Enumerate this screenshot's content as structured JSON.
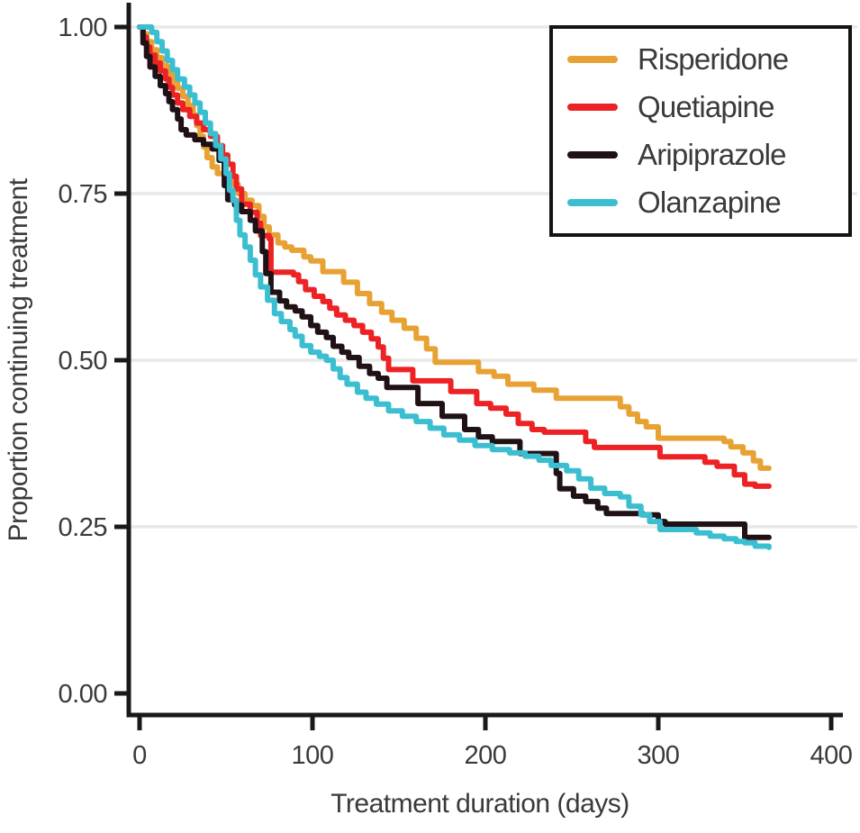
{
  "figure": {
    "background": "#ffffff",
    "axis_color": "#191919",
    "grid_color": "#e8e8e8",
    "text_color": "#3a3a3a"
  },
  "chart_data": {
    "type": "line",
    "subtype": "kaplan-meier-step",
    "title": "",
    "xlabel": "Treatment duration (days)",
    "ylabel": "Proportion continuing treatment",
    "xlim": [
      0,
      400
    ],
    "ylim": [
      0.0,
      1.0
    ],
    "xticks": [
      "0",
      "100",
      "200",
      "300",
      "400"
    ],
    "xtick_values": [
      0,
      100,
      200,
      300,
      400
    ],
    "yticks": [
      "0.00",
      "0.25",
      "0.50",
      "0.75",
      "1.00"
    ],
    "ytick_values": [
      0.0,
      0.25,
      0.5,
      0.75,
      1.0
    ],
    "grid": "horizontal",
    "gridline_values": [
      0.25,
      0.5,
      0.75,
      1.0
    ],
    "legend_position": "top-right",
    "series": [
      {
        "name": "Risperidone",
        "color": "#e8a133",
        "points": [
          [
            0,
            1.0
          ],
          [
            2,
            0.99
          ],
          [
            4,
            0.978
          ],
          [
            7,
            0.966
          ],
          [
            10,
            0.954
          ],
          [
            13,
            0.942
          ],
          [
            16,
            0.93
          ],
          [
            19,
            0.918
          ],
          [
            22,
            0.908
          ],
          [
            25,
            0.896
          ],
          [
            28,
            0.882
          ],
          [
            31,
            0.868
          ],
          [
            33,
            0.852
          ],
          [
            35,
            0.836
          ],
          [
            37,
            0.82
          ],
          [
            39,
            0.804
          ],
          [
            42,
            0.79
          ],
          [
            45,
            0.78
          ],
          [
            49,
            0.772
          ],
          [
            53,
            0.764
          ],
          [
            57,
            0.75
          ],
          [
            61,
            0.74
          ],
          [
            65,
            0.732
          ],
          [
            69,
            0.716
          ],
          [
            72,
            0.7
          ],
          [
            75,
            0.688
          ],
          [
            80,
            0.676
          ],
          [
            84,
            0.67
          ],
          [
            88,
            0.665
          ],
          [
            95,
            0.655
          ],
          [
            99,
            0.649
          ],
          [
            106,
            0.633
          ],
          [
            118,
            0.617
          ],
          [
            126,
            0.6
          ],
          [
            133,
            0.585
          ],
          [
            140,
            0.572
          ],
          [
            146,
            0.56
          ],
          [
            153,
            0.548
          ],
          [
            160,
            0.533
          ],
          [
            166,
            0.517
          ],
          [
            171,
            0.497
          ],
          [
            196,
            0.483
          ],
          [
            205,
            0.476
          ],
          [
            213,
            0.464
          ],
          [
            228,
            0.455
          ],
          [
            241,
            0.443
          ],
          [
            278,
            0.43
          ],
          [
            283,
            0.419
          ],
          [
            288,
            0.408
          ],
          [
            293,
            0.4
          ],
          [
            300,
            0.383
          ],
          [
            338,
            0.378
          ],
          [
            342,
            0.37
          ],
          [
            349,
            0.361
          ],
          [
            355,
            0.349
          ],
          [
            359,
            0.338
          ],
          [
            364,
            0.338
          ]
        ]
      },
      {
        "name": "Quetiapine",
        "color": "#ed2224",
        "points": [
          [
            0,
            1.0
          ],
          [
            2,
            0.985
          ],
          [
            4,
            0.97
          ],
          [
            6,
            0.958
          ],
          [
            9,
            0.946
          ],
          [
            12,
            0.934
          ],
          [
            15,
            0.922
          ],
          [
            17,
            0.91
          ],
          [
            19,
            0.898
          ],
          [
            22,
            0.886
          ],
          [
            25,
            0.876
          ],
          [
            29,
            0.866
          ],
          [
            33,
            0.856
          ],
          [
            37,
            0.846
          ],
          [
            41,
            0.836
          ],
          [
            45,
            0.822
          ],
          [
            48,
            0.808
          ],
          [
            51,
            0.794
          ],
          [
            54,
            0.776
          ],
          [
            56,
            0.757
          ],
          [
            59,
            0.734
          ],
          [
            64,
            0.722
          ],
          [
            68,
            0.706
          ],
          [
            70,
            0.687
          ],
          [
            75,
            0.682
          ],
          [
            76,
            0.632
          ],
          [
            89,
            0.628
          ],
          [
            92,
            0.618
          ],
          [
            96,
            0.606
          ],
          [
            101,
            0.596
          ],
          [
            106,
            0.588
          ],
          [
            110,
            0.578
          ],
          [
            114,
            0.568
          ],
          [
            119,
            0.56
          ],
          [
            124,
            0.552
          ],
          [
            129,
            0.542
          ],
          [
            134,
            0.532
          ],
          [
            138,
            0.52
          ],
          [
            141,
            0.503
          ],
          [
            144,
            0.486
          ],
          [
            158,
            0.469
          ],
          [
            180,
            0.453
          ],
          [
            195,
            0.435
          ],
          [
            203,
            0.428
          ],
          [
            212,
            0.419
          ],
          [
            219,
            0.405
          ],
          [
            227,
            0.396
          ],
          [
            234,
            0.392
          ],
          [
            258,
            0.378
          ],
          [
            263,
            0.369
          ],
          [
            301,
            0.355
          ],
          [
            327,
            0.347
          ],
          [
            334,
            0.341
          ],
          [
            344,
            0.328
          ],
          [
            350,
            0.314
          ],
          [
            356,
            0.311
          ],
          [
            364,
            0.311
          ]
        ]
      },
      {
        "name": "Aripiprazole",
        "color": "#1f1115",
        "points": [
          [
            0,
            1.0
          ],
          [
            2,
            0.976
          ],
          [
            4,
            0.956
          ],
          [
            6,
            0.94
          ],
          [
            9,
            0.926
          ],
          [
            12,
            0.912
          ],
          [
            15,
            0.9
          ],
          [
            17,
            0.888
          ],
          [
            19,
            0.876
          ],
          [
            22,
            0.862
          ],
          [
            24,
            0.846
          ],
          [
            27,
            0.838
          ],
          [
            32,
            0.831
          ],
          [
            37,
            0.824
          ],
          [
            42,
            0.817
          ],
          [
            46,
            0.8
          ],
          [
            49,
            0.762
          ],
          [
            51,
            0.741
          ],
          [
            55,
            0.733
          ],
          [
            59,
            0.723
          ],
          [
            64,
            0.71
          ],
          [
            67,
            0.694
          ],
          [
            71,
            0.663
          ],
          [
            73,
            0.63
          ],
          [
            76,
            0.602
          ],
          [
            81,
            0.589
          ],
          [
            85,
            0.58
          ],
          [
            90,
            0.574
          ],
          [
            94,
            0.565
          ],
          [
            99,
            0.552
          ],
          [
            103,
            0.542
          ],
          [
            108,
            0.534
          ],
          [
            112,
            0.521
          ],
          [
            117,
            0.512
          ],
          [
            121,
            0.504
          ],
          [
            127,
            0.491
          ],
          [
            133,
            0.48
          ],
          [
            138,
            0.473
          ],
          [
            143,
            0.459
          ],
          [
            161,
            0.435
          ],
          [
            175,
            0.416
          ],
          [
            188,
            0.396
          ],
          [
            196,
            0.385
          ],
          [
            204,
            0.378
          ],
          [
            220,
            0.36
          ],
          [
            241,
            0.33
          ],
          [
            243,
            0.307
          ],
          [
            251,
            0.296
          ],
          [
            258,
            0.288
          ],
          [
            265,
            0.278
          ],
          [
            270,
            0.27
          ],
          [
            291,
            0.268
          ],
          [
            300,
            0.258
          ],
          [
            304,
            0.254
          ],
          [
            350,
            0.234
          ],
          [
            364,
            0.234
          ]
        ]
      },
      {
        "name": "Olanzapine",
        "color": "#3bbfd0",
        "points": [
          [
            0,
            1.0
          ],
          [
            7,
            0.992
          ],
          [
            10,
            0.978
          ],
          [
            13,
            0.964
          ],
          [
            16,
            0.95
          ],
          [
            19,
            0.936
          ],
          [
            22,
            0.922
          ],
          [
            26,
            0.91
          ],
          [
            29,
            0.898
          ],
          [
            32,
            0.886
          ],
          [
            35,
            0.872
          ],
          [
            38,
            0.856
          ],
          [
            41,
            0.84
          ],
          [
            44,
            0.822
          ],
          [
            47,
            0.802
          ],
          [
            50,
            0.78
          ],
          [
            52,
            0.755
          ],
          [
            54,
            0.74
          ],
          [
            56,
            0.71
          ],
          [
            58,
            0.688
          ],
          [
            61,
            0.67
          ],
          [
            64,
            0.65
          ],
          [
            67,
            0.628
          ],
          [
            70,
            0.61
          ],
          [
            74,
            0.59
          ],
          [
            78,
            0.57
          ],
          [
            82,
            0.558
          ],
          [
            87,
            0.546
          ],
          [
            90,
            0.536
          ],
          [
            94,
            0.522
          ],
          [
            99,
            0.512
          ],
          [
            104,
            0.506
          ],
          [
            108,
            0.5
          ],
          [
            112,
            0.487
          ],
          [
            116,
            0.474
          ],
          [
            120,
            0.464
          ],
          [
            126,
            0.452
          ],
          [
            131,
            0.443
          ],
          [
            137,
            0.434
          ],
          [
            144,
            0.424
          ],
          [
            152,
            0.416
          ],
          [
            160,
            0.408
          ],
          [
            168,
            0.398
          ],
          [
            176,
            0.388
          ],
          [
            185,
            0.38
          ],
          [
            194,
            0.372
          ],
          [
            204,
            0.366
          ],
          [
            214,
            0.361
          ],
          [
            223,
            0.356
          ],
          [
            231,
            0.35
          ],
          [
            238,
            0.342
          ],
          [
            247,
            0.334
          ],
          [
            254,
            0.322
          ],
          [
            261,
            0.308
          ],
          [
            269,
            0.3
          ],
          [
            278,
            0.295
          ],
          [
            283,
            0.281
          ],
          [
            290,
            0.268
          ],
          [
            295,
            0.258
          ],
          [
            301,
            0.246
          ],
          [
            322,
            0.241
          ],
          [
            330,
            0.236
          ],
          [
            338,
            0.232
          ],
          [
            345,
            0.228
          ],
          [
            350,
            0.226
          ],
          [
            356,
            0.221
          ],
          [
            364,
            0.219
          ]
        ]
      }
    ]
  }
}
